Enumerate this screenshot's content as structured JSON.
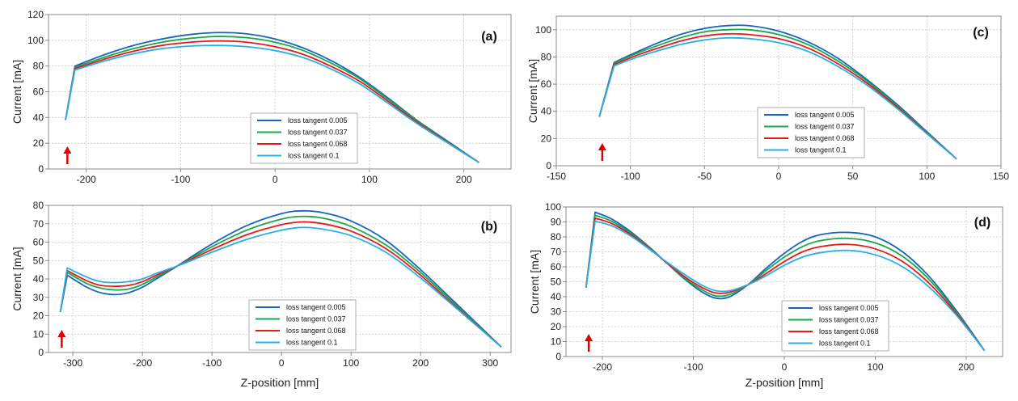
{
  "series_colors": [
    "#1565c0",
    "#18a84a",
    "#e81818",
    "#26b0e8"
  ],
  "chart_data": [
    {
      "type": "line",
      "panel": "(a)",
      "ylabel": "Current [mA]",
      "xlabel": "",
      "xlim": [
        -240,
        250
      ],
      "ylim": [
        0,
        120
      ],
      "xticks": [
        -200,
        -100,
        0,
        100,
        200
      ],
      "yticks": [
        0,
        20,
        40,
        60,
        80,
        100,
        120
      ],
      "arrow_x": -220,
      "legend_position": "lower-right",
      "series": [
        {
          "name": "loss tangent 0.005",
          "x": [
            -222,
            -212,
            -180,
            -150,
            -120,
            -90,
            -60,
            -30,
            0,
            30,
            60,
            90,
            120,
            150,
            180,
            216
          ],
          "values": [
            38,
            80,
            89,
            96,
            101,
            104.5,
            106,
            105,
            101,
            94,
            84,
            71,
            55,
            38,
            23,
            5
          ]
        },
        {
          "name": "loss tangent 0.037",
          "x": [
            -222,
            -212,
            -180,
            -150,
            -120,
            -90,
            -60,
            -30,
            0,
            30,
            60,
            90,
            120,
            150,
            180,
            216
          ],
          "values": [
            38,
            79,
            87,
            93.5,
            98.5,
            101.5,
            103,
            102,
            98.5,
            92,
            82,
            70,
            54,
            37.5,
            22.5,
            5
          ]
        },
        {
          "name": "loss tangent 0.068",
          "x": [
            -222,
            -212,
            -180,
            -150,
            -120,
            -90,
            -60,
            -30,
            0,
            30,
            60,
            90,
            120,
            150,
            180,
            216
          ],
          "values": [
            38,
            78,
            85.5,
            91.5,
            96,
            98.5,
            99.5,
            98.5,
            95,
            89,
            79.5,
            68,
            52.5,
            36.5,
            22,
            5
          ]
        },
        {
          "name": "loss tangent 0.1",
          "x": [
            -222,
            -212,
            -180,
            -150,
            -120,
            -90,
            -60,
            -30,
            0,
            30,
            60,
            90,
            120,
            150,
            180,
            216
          ],
          "values": [
            38,
            77,
            84,
            89.5,
            93.5,
            95.5,
            96,
            95,
            92,
            86.5,
            77.5,
            66,
            51,
            35.5,
            21.5,
            5
          ]
        }
      ]
    },
    {
      "type": "line",
      "panel": "(b)",
      "ylabel": "Current [mA]",
      "xlabel": "Z-position [mm]",
      "xlim": [
        -335,
        330
      ],
      "ylim": [
        0,
        80
      ],
      "xticks": [
        -300,
        -200,
        -100,
        0,
        100,
        200,
        300
      ],
      "yticks": [
        0,
        10,
        20,
        30,
        40,
        50,
        60,
        70,
        80
      ],
      "arrow_x": -316,
      "legend_position": "lower-right",
      "series": [
        {
          "name": "loss tangent 0.005",
          "x": [
            -318,
            -308,
            -280,
            -260,
            -240,
            -220,
            -200,
            -180,
            -150,
            -100,
            -50,
            0,
            30,
            60,
            100,
            150,
            200,
            250,
            316
          ],
          "values": [
            22,
            42,
            35.5,
            32.5,
            31.5,
            32.5,
            35.5,
            40,
            47,
            59,
            69,
            75.5,
            77,
            76,
            71.5,
            61,
            45,
            27,
            3
          ]
        },
        {
          "name": "loss tangent 0.037",
          "x": [
            -318,
            -308,
            -280,
            -260,
            -240,
            -220,
            -200,
            -180,
            -150,
            -100,
            -50,
            0,
            30,
            60,
            100,
            150,
            200,
            250,
            316
          ],
          "values": [
            22,
            43.5,
            37.5,
            35,
            34,
            34.5,
            37,
            41,
            47,
            57.5,
            66.5,
            72.5,
            74,
            73,
            68.5,
            58.5,
            43.5,
            26,
            3
          ]
        },
        {
          "name": "loss tangent 0.068",
          "x": [
            -318,
            -308,
            -280,
            -260,
            -240,
            -220,
            -200,
            -180,
            -150,
            -100,
            -50,
            0,
            30,
            60,
            100,
            150,
            200,
            250,
            316
          ],
          "values": [
            22,
            44.5,
            39,
            36.5,
            36,
            36.5,
            38.5,
            42,
            47,
            56,
            64,
            69.5,
            71,
            70,
            66,
            56.5,
            42,
            25,
            3
          ]
        },
        {
          "name": "loss tangent 0.1",
          "x": [
            -318,
            -308,
            -280,
            -260,
            -240,
            -220,
            -200,
            -180,
            -150,
            -100,
            -50,
            0,
            30,
            60,
            100,
            150,
            200,
            250,
            316
          ],
          "values": [
            22,
            46,
            41,
            38.5,
            38,
            38.5,
            40,
            43,
            47,
            54.5,
            61.5,
            66.5,
            68,
            67,
            63.5,
            54.5,
            40.5,
            24.5,
            3
          ]
        }
      ]
    },
    {
      "type": "line",
      "panel": "(c)",
      "ylabel": "Current [mA]",
      "xlabel": "",
      "xlim": [
        -150,
        150
      ],
      "ylim": [
        0,
        110
      ],
      "xticks": [
        -150,
        -100,
        -50,
        0,
        50,
        100,
        150
      ],
      "yticks": [
        0,
        20,
        40,
        60,
        80,
        100
      ],
      "arrow_x": -119,
      "legend_position": "lower-right",
      "series": [
        {
          "name": "loss tangent 0.005",
          "x": [
            -121,
            -111,
            -95,
            -80,
            -65,
            -50,
            -35,
            -20,
            0,
            20,
            40,
            60,
            80,
            100,
            120
          ],
          "values": [
            36,
            76,
            84,
            91,
            97,
            101,
            103,
            103,
            99,
            91,
            79,
            63,
            45,
            25,
            5
          ]
        },
        {
          "name": "loss tangent 0.037",
          "x": [
            -121,
            -111,
            -95,
            -80,
            -65,
            -50,
            -35,
            -20,
            0,
            20,
            40,
            60,
            80,
            100,
            120
          ],
          "values": [
            36,
            75.5,
            83,
            89,
            94.5,
            98.5,
            100,
            100,
            96.5,
            89,
            77,
            62,
            44,
            24.5,
            5
          ]
        },
        {
          "name": "loss tangent 0.068",
          "x": [
            -121,
            -111,
            -95,
            -80,
            -65,
            -50,
            -35,
            -20,
            0,
            20,
            40,
            60,
            80,
            100,
            120
          ],
          "values": [
            36,
            74.5,
            81.5,
            87,
            92,
            95.5,
            97,
            96.5,
            93.5,
            86.5,
            75,
            60.5,
            43,
            24,
            5
          ]
        },
        {
          "name": "loss tangent 0.1",
          "x": [
            -121,
            -111,
            -95,
            -80,
            -65,
            -50,
            -35,
            -20,
            0,
            20,
            40,
            60,
            80,
            100,
            120
          ],
          "values": [
            36,
            73.5,
            80,
            85,
            89.5,
            92.5,
            94,
            93.5,
            90.5,
            84,
            73,
            59,
            42,
            23.5,
            5
          ]
        }
      ]
    },
    {
      "type": "line",
      "panel": "(d)",
      "ylabel": "Current [mA]",
      "xlabel": "Z-position [mm]",
      "xlim": [
        -240,
        240
      ],
      "ylim": [
        0,
        100
      ],
      "xticks": [
        -200,
        -100,
        0,
        100,
        200
      ],
      "yticks": [
        0,
        10,
        20,
        30,
        40,
        50,
        60,
        70,
        80,
        90,
        100
      ],
      "arrow_x": -215,
      "legend_position": "lower-right",
      "series": [
        {
          "name": "loss tangent 0.005",
          "x": [
            -218,
            -208,
            -190,
            -170,
            -150,
            -130,
            -110,
            -90,
            -75,
            -60,
            -40,
            -20,
            0,
            20,
            40,
            70,
            100,
            130,
            160,
            190,
            220
          ],
          "values": [
            46,
            96.5,
            92,
            84,
            74,
            63,
            52,
            43,
            39,
            40,
            48,
            59,
            69,
            77,
            81.5,
            83,
            80,
            70,
            53,
            30,
            4
          ]
        },
        {
          "name": "loss tangent 0.037",
          "x": [
            -218,
            -208,
            -190,
            -170,
            -150,
            -130,
            -110,
            -90,
            -75,
            -60,
            -40,
            -20,
            0,
            20,
            40,
            70,
            100,
            130,
            160,
            190,
            220
          ],
          "values": [
            46,
            94.5,
            90.5,
            83,
            73.5,
            63,
            52.5,
            44.5,
            40.5,
            41.5,
            48,
            57.5,
            66.5,
            73.5,
            77.5,
            79,
            76,
            67,
            51,
            29,
            4
          ]
        },
        {
          "name": "loss tangent 0.068",
          "x": [
            -218,
            -208,
            -190,
            -170,
            -150,
            -130,
            -110,
            -90,
            -75,
            -60,
            -40,
            -20,
            0,
            20,
            40,
            70,
            100,
            130,
            160,
            190,
            220
          ],
          "values": [
            46,
            92.5,
            89,
            82,
            73,
            63,
            53.5,
            46,
            42.5,
            43,
            48,
            55.5,
            63.5,
            70,
            73.5,
            75,
            72,
            63.5,
            48.5,
            28,
            4
          ]
        },
        {
          "name": "loss tangent 0.1",
          "x": [
            -218,
            -208,
            -190,
            -170,
            -150,
            -130,
            -110,
            -90,
            -75,
            -60,
            -40,
            -20,
            0,
            20,
            40,
            70,
            100,
            130,
            160,
            190,
            220
          ],
          "values": [
            46,
            90.5,
            87.5,
            81,
            72.5,
            63.5,
            55,
            47.5,
            44,
            44,
            48,
            54,
            61,
            66.5,
            69.5,
            71,
            68,
            60,
            46,
            27,
            4
          ]
        }
      ]
    }
  ]
}
